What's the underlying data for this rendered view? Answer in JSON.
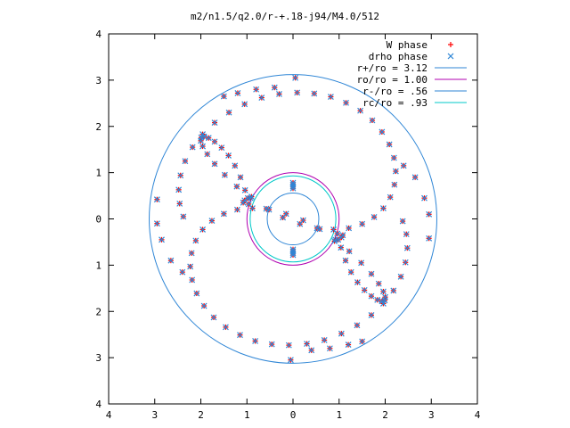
{
  "chart_data": {
    "type": "scatter",
    "title": "m2/n1.5/q2.0/r-+.18-j94/M4.0/512",
    "xlabel": "",
    "ylabel": "",
    "xlim": [
      -4,
      4
    ],
    "ylim": [
      -4,
      4
    ],
    "x_ticks": [
      -4,
      -3,
      -2,
      -1,
      0,
      1,
      2,
      3,
      4
    ],
    "y_ticks": [
      -4,
      -3,
      -2,
      -1,
      0,
      1,
      2,
      3,
      4
    ],
    "x_tick_labels": [
      "4",
      "3",
      "2",
      "1",
      "0",
      "1",
      "2",
      "3",
      "4"
    ],
    "y_tick_labels": [
      "4",
      "3",
      "2",
      "1",
      "0",
      "1",
      "2",
      "3",
      "4"
    ],
    "grid": false,
    "legend_position": "top-right",
    "legend": [
      {
        "label": "W phase",
        "marker": "plus",
        "color": "#ff0000"
      },
      {
        "label": "drho phase",
        "marker": "x",
        "color": "#2f86d6"
      },
      {
        "label": "r+/ro = 3.12",
        "marker": "line",
        "color": "#2f86d6"
      },
      {
        "label": "ro/ro = 1.00",
        "marker": "line",
        "color": "#b000b0"
      },
      {
        "label": "r-/ro = .56",
        "marker": "line",
        "color": "#2f86d6"
      },
      {
        "label": "rc/ro = .93",
        "marker": "line",
        "color": "#00c8c8"
      }
    ],
    "circles": [
      {
        "name": "r+/ro",
        "radius": 3.12,
        "color": "#2f86d6"
      },
      {
        "name": "ro/ro",
        "radius": 1.0,
        "color": "#b000b0"
      },
      {
        "name": "r-/ro",
        "radius": 0.56,
        "color": "#2f86d6"
      },
      {
        "name": "rc/ro",
        "radius": 0.93,
        "color": "#00c8c8"
      }
    ],
    "series": [
      {
        "name": "W phase",
        "color": "#ff0000",
        "marker": "plus",
        "x": [
          -0.96,
          -1.04,
          -1.14,
          -1.26,
          -1.4,
          -1.55,
          -1.7,
          -1.83,
          -1.93,
          -1.99,
          -2.0,
          -1.96,
          -1.86,
          -1.7,
          -1.48,
          -1.22,
          -0.92,
          -0.58,
          -0.22,
          0.15,
          0.52,
          0.88,
          1.21,
          1.5,
          1.76,
          1.96,
          2.11,
          2.2,
          2.23,
          2.19,
          2.09,
          1.93,
          1.72,
          1.46,
          1.15,
          0.82,
          0.46,
          0.09,
          -0.3,
          -0.68,
          -1.05,
          -1.39,
          -1.7,
          -1.96,
          -2.18,
          -2.34,
          -2.44,
          -2.48,
          -2.46,
          -2.38,
          0.96,
          1.04,
          1.14,
          1.26,
          1.4,
          1.55,
          1.7,
          1.83,
          1.93,
          1.99,
          2.0,
          1.96,
          1.86,
          1.7,
          1.48,
          1.22,
          0.92,
          0.58,
          0.22,
          -0.15,
          -0.52,
          -0.88,
          -1.21,
          -1.5,
          -1.76,
          -1.96,
          -2.11,
          -2.2,
          -2.23,
          -2.19,
          -2.09,
          -1.93,
          -1.72,
          -1.46,
          -1.15,
          -0.82,
          -0.46,
          -0.09,
          0.3,
          0.68,
          1.05,
          1.39,
          1.7,
          1.96,
          2.18,
          2.34,
          2.44,
          2.48,
          2.46,
          2.38,
          -1.08,
          -1.05,
          -0.98,
          -0.9,
          1.08,
          1.05,
          0.98,
          0.9,
          0.0,
          0.0,
          0.0,
          0.0,
          0.0,
          0.0,
          0.0,
          0.0,
          -2.95,
          -2.95,
          -2.85,
          -2.65,
          -2.4,
          2.95,
          2.95,
          2.85,
          2.65,
          2.4,
          -1.5,
          -1.2,
          -0.8,
          -0.4,
          0.05,
          1.5,
          1.2,
          0.8,
          0.4,
          -0.05
        ],
        "y": [
          0.32,
          0.62,
          0.9,
          1.15,
          1.37,
          1.54,
          1.67,
          1.75,
          1.78,
          1.76,
          1.69,
          1.57,
          1.4,
          1.19,
          0.95,
          0.7,
          0.45,
          0.22,
          0.03,
          -0.11,
          -0.2,
          -0.23,
          -0.2,
          -0.11,
          0.04,
          0.23,
          0.47,
          0.74,
          1.03,
          1.32,
          1.61,
          1.88,
          2.13,
          2.34,
          2.51,
          2.64,
          2.71,
          2.73,
          2.7,
          2.62,
          2.48,
          2.3,
          2.08,
          1.83,
          1.55,
          1.25,
          0.94,
          0.63,
          0.33,
          0.05,
          -0.32,
          -0.62,
          -0.9,
          -1.15,
          -1.37,
          -1.54,
          -1.67,
          -1.75,
          -1.78,
          -1.76,
          -1.69,
          -1.57,
          -1.4,
          -1.19,
          -0.95,
          -0.7,
          -0.45,
          -0.22,
          -0.03,
          0.11,
          0.2,
          0.23,
          0.2,
          0.11,
          -0.04,
          -0.23,
          -0.47,
          -0.74,
          -1.03,
          -1.32,
          -1.61,
          -1.88,
          -2.13,
          -2.34,
          -2.51,
          -2.64,
          -2.71,
          -2.73,
          -2.7,
          -2.62,
          -2.48,
          -2.3,
          -2.08,
          -1.83,
          -1.55,
          -1.25,
          -0.94,
          -0.63,
          -0.33,
          -0.05,
          0.35,
          0.4,
          0.45,
          0.48,
          -0.35,
          -0.4,
          -0.45,
          -0.48,
          0.78,
          0.74,
          0.7,
          0.66,
          -0.66,
          -0.7,
          -0.74,
          -0.78,
          0.42,
          -0.1,
          -0.45,
          -0.9,
          -1.15,
          -0.42,
          0.1,
          0.45,
          0.9,
          1.15,
          2.65,
          2.72,
          2.8,
          2.84,
          3.05,
          -2.65,
          -2.72,
          -2.8,
          -2.84,
          -3.05
        ]
      },
      {
        "name": "drho phase",
        "color": "#2f86d6",
        "marker": "x",
        "x": [
          -0.96,
          -1.04,
          -1.14,
          -1.26,
          -1.4,
          -1.55,
          -1.7,
          -1.83,
          -1.93,
          -1.99,
          -2.0,
          -1.96,
          -1.86,
          -1.7,
          -1.48,
          -1.22,
          -0.92,
          -0.58,
          -0.22,
          0.15,
          0.52,
          0.88,
          1.21,
          1.5,
          1.76,
          1.96,
          2.11,
          2.2,
          2.23,
          2.19,
          2.09,
          1.93,
          1.72,
          1.46,
          1.15,
          0.82,
          0.46,
          0.09,
          -0.3,
          -0.68,
          -1.05,
          -1.39,
          -1.7,
          -1.96,
          -2.18,
          -2.34,
          -2.44,
          -2.48,
          -2.46,
          -2.38,
          0.96,
          1.04,
          1.14,
          1.26,
          1.4,
          1.55,
          1.7,
          1.83,
          1.93,
          1.99,
          2.0,
          1.96,
          1.86,
          1.7,
          1.48,
          1.22,
          0.92,
          0.58,
          0.22,
          -0.15,
          -0.52,
          -0.88,
          -1.21,
          -1.5,
          -1.76,
          -1.96,
          -2.11,
          -2.2,
          -2.23,
          -2.19,
          -2.09,
          -1.93,
          -1.72,
          -1.46,
          -1.15,
          -0.82,
          -0.46,
          -0.09,
          0.3,
          0.68,
          1.05,
          1.39,
          1.7,
          1.96,
          2.18,
          2.34,
          2.44,
          2.48,
          2.46,
          2.38,
          -1.08,
          -1.05,
          -0.98,
          -0.9,
          1.08,
          1.05,
          0.98,
          0.9,
          0.0,
          0.0,
          0.0,
          0.0,
          0.0,
          0.0,
          0.0,
          0.0,
          -2.95,
          -2.95,
          -2.85,
          -2.65,
          -2.4,
          2.95,
          2.95,
          2.85,
          2.65,
          2.4,
          -1.5,
          -1.2,
          -0.8,
          -0.4,
          0.05,
          1.5,
          1.2,
          0.8,
          0.4,
          -0.05
        ],
        "y": [
          0.32,
          0.62,
          0.9,
          1.15,
          1.37,
          1.54,
          1.67,
          1.75,
          1.78,
          1.76,
          1.69,
          1.57,
          1.4,
          1.19,
          0.95,
          0.7,
          0.45,
          0.22,
          0.03,
          -0.11,
          -0.2,
          -0.23,
          -0.2,
          -0.11,
          0.04,
          0.23,
          0.47,
          0.74,
          1.03,
          1.32,
          1.61,
          1.88,
          2.13,
          2.34,
          2.51,
          2.64,
          2.71,
          2.73,
          2.7,
          2.62,
          2.48,
          2.3,
          2.08,
          1.83,
          1.55,
          1.25,
          0.94,
          0.63,
          0.33,
          0.05,
          -0.32,
          -0.62,
          -0.9,
          -1.15,
          -1.37,
          -1.54,
          -1.67,
          -1.75,
          -1.78,
          -1.76,
          -1.69,
          -1.57,
          -1.4,
          -1.19,
          -0.95,
          -0.7,
          -0.45,
          -0.22,
          -0.03,
          0.11,
          0.2,
          0.23,
          0.2,
          0.11,
          -0.04,
          -0.23,
          -0.47,
          -0.74,
          -1.03,
          -1.32,
          -1.61,
          -1.88,
          -2.13,
          -2.34,
          -2.51,
          -2.64,
          -2.71,
          -2.73,
          -2.7,
          -2.62,
          -2.48,
          -2.3,
          -2.08,
          -1.83,
          -1.55,
          -1.25,
          -0.94,
          -0.63,
          -0.33,
          -0.05,
          0.35,
          0.4,
          0.45,
          0.48,
          -0.35,
          -0.4,
          -0.45,
          -0.48,
          0.78,
          0.74,
          0.7,
          0.66,
          -0.66,
          -0.7,
          -0.74,
          -0.78,
          0.42,
          -0.1,
          -0.45,
          -0.9,
          -1.15,
          -0.42,
          0.1,
          0.45,
          0.9,
          1.15,
          2.65,
          2.72,
          2.8,
          2.84,
          3.05,
          -2.65,
          -2.72,
          -2.8,
          -2.84,
          -3.05
        ]
      }
    ]
  }
}
